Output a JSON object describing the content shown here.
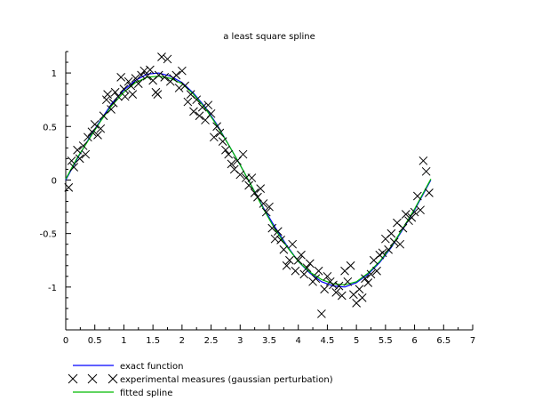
{
  "chart_data": {
    "type": "line",
    "title": "a least square spline",
    "xlabel": "",
    "ylabel": "",
    "xlim": [
      0,
      7
    ],
    "ylim": [
      -1.4,
      1.2
    ],
    "x_ticks": [
      0,
      0.5,
      1,
      1.5,
      2,
      2.5,
      3,
      3.5,
      4,
      4.5,
      5,
      5.5,
      6,
      6.5,
      7
    ],
    "x_tick_labels": [
      "0",
      "0.5",
      "1",
      "1.5",
      "2",
      "2.5",
      "3",
      "3.5",
      "4",
      "4.5",
      "5",
      "5.5",
      "6",
      "6.5",
      "7"
    ],
    "y_ticks": [
      -1,
      -0.5,
      0,
      0.5,
      1
    ],
    "y_tick_labels": [
      "-1",
      "-0.5",
      "0",
      "0.5",
      "1"
    ],
    "grid": false,
    "legend_position": "bottom-left",
    "legend": [
      {
        "label": "exact function",
        "color": "#0000ff",
        "marker": "line"
      },
      {
        "label": "experimental measures (gaussian perturbation)",
        "color": "#000000",
        "marker": "cross"
      },
      {
        "label": "fitted spline",
        "color": "#00bb00",
        "marker": "line"
      }
    ],
    "series": [
      {
        "name": "exact function",
        "type": "line",
        "color": "#0000ff",
        "x": [
          0,
          0.2,
          0.4,
          0.6,
          0.8,
          1.0,
          1.2,
          1.4,
          1.6,
          1.8,
          2.0,
          2.2,
          2.4,
          2.6,
          2.8,
          3.0,
          3.2,
          3.4,
          3.6,
          3.8,
          4.0,
          4.2,
          4.4,
          4.6,
          4.8,
          5.0,
          5.2,
          5.4,
          5.6,
          5.8,
          6.0,
          6.2,
          6.28
        ],
        "y": [
          0,
          0.2,
          0.39,
          0.56,
          0.72,
          0.84,
          0.93,
          0.99,
          1.0,
          0.97,
          0.91,
          0.81,
          0.68,
          0.52,
          0.33,
          0.14,
          -0.06,
          -0.26,
          -0.44,
          -0.61,
          -0.76,
          -0.87,
          -0.95,
          -0.99,
          -1.0,
          -0.96,
          -0.88,
          -0.77,
          -0.63,
          -0.46,
          -0.28,
          -0.08,
          0
        ]
      },
      {
        "name": "fitted spline",
        "type": "line",
        "color": "#00bb00",
        "x": [
          0,
          0.2,
          0.4,
          0.6,
          0.8,
          1.0,
          1.2,
          1.4,
          1.6,
          1.8,
          2.0,
          2.2,
          2.4,
          2.6,
          2.8,
          3.0,
          3.2,
          3.4,
          3.6,
          3.8,
          4.0,
          4.2,
          4.4,
          4.6,
          4.8,
          5.0,
          5.2,
          5.4,
          5.6,
          5.8,
          6.0,
          6.2,
          6.28
        ],
        "y": [
          0.01,
          0.21,
          0.38,
          0.55,
          0.7,
          0.82,
          0.91,
          0.96,
          0.97,
          0.95,
          0.9,
          0.8,
          0.67,
          0.51,
          0.33,
          0.14,
          -0.06,
          -0.27,
          -0.46,
          -0.62,
          -0.76,
          -0.86,
          -0.93,
          -0.97,
          -0.98,
          -0.95,
          -0.87,
          -0.76,
          -0.62,
          -0.45,
          -0.27,
          -0.07,
          0.01
        ]
      },
      {
        "name": "experimental measures (gaussian perturbation)",
        "type": "scatter",
        "color": "#000000",
        "x": [
          0.05,
          0.1,
          0.14,
          0.2,
          0.24,
          0.3,
          0.34,
          0.38,
          0.45,
          0.5,
          0.55,
          0.6,
          0.65,
          0.7,
          0.72,
          0.78,
          0.82,
          0.85,
          0.9,
          0.95,
          1.0,
          1.02,
          1.08,
          1.12,
          1.15,
          1.2,
          1.25,
          1.3,
          1.35,
          1.4,
          1.45,
          1.5,
          1.55,
          1.58,
          1.6,
          1.65,
          1.7,
          1.75,
          1.8,
          1.85,
          1.9,
          1.95,
          2.0,
          2.05,
          2.1,
          2.15,
          2.2,
          2.25,
          2.3,
          2.35,
          2.4,
          2.45,
          2.5,
          2.55,
          2.6,
          2.65,
          2.7,
          2.75,
          2.8,
          2.85,
          2.9,
          2.95,
          3.0,
          3.05,
          3.1,
          3.15,
          3.2,
          3.25,
          3.3,
          3.35,
          3.4,
          3.45,
          3.5,
          3.55,
          3.6,
          3.65,
          3.7,
          3.75,
          3.8,
          3.85,
          3.9,
          3.95,
          4.0,
          4.05,
          4.1,
          4.15,
          4.2,
          4.25,
          4.3,
          4.35,
          4.4,
          4.45,
          4.5,
          4.55,
          4.6,
          4.65,
          4.7,
          4.75,
          4.8,
          4.85,
          4.9,
          4.95,
          5.0,
          5.05,
          5.1,
          5.15,
          5.2,
          5.25,
          5.3,
          5.35,
          5.4,
          5.45,
          5.5,
          5.55,
          5.6,
          5.65,
          5.7,
          5.75,
          5.8,
          5.85,
          5.9,
          5.95,
          6.0,
          6.05,
          6.1,
          6.15,
          6.2,
          6.25
        ],
        "y": [
          -0.07,
          0.18,
          0.12,
          0.28,
          0.2,
          0.32,
          0.24,
          0.4,
          0.45,
          0.52,
          0.42,
          0.48,
          0.6,
          0.75,
          0.8,
          0.66,
          0.72,
          0.82,
          0.78,
          0.96,
          0.85,
          0.78,
          0.92,
          0.88,
          0.8,
          0.95,
          0.9,
          0.98,
          1.02,
          0.97,
          1.03,
          0.93,
          0.82,
          0.8,
          0.98,
          1.15,
          0.96,
          1.13,
          0.92,
          0.95,
          0.98,
          0.86,
          1.02,
          0.88,
          0.73,
          0.8,
          0.64,
          0.75,
          0.6,
          0.68,
          0.56,
          0.7,
          0.62,
          0.4,
          0.5,
          0.44,
          0.36,
          0.28,
          0.24,
          0.15,
          0.1,
          0.18,
          0.05,
          0.24,
          0.02,
          -0.05,
          0.02,
          -0.12,
          -0.16,
          -0.08,
          -0.22,
          -0.3,
          -0.25,
          -0.45,
          -0.55,
          -0.48,
          -0.56,
          -0.65,
          -0.8,
          -0.75,
          -0.6,
          -0.85,
          -0.75,
          -0.7,
          -0.88,
          -0.82,
          -0.78,
          -0.95,
          -0.92,
          -0.85,
          -1.25,
          -1.02,
          -0.9,
          -0.95,
          -0.98,
          -1.05,
          -0.99,
          -1.08,
          -0.85,
          -0.95,
          -0.8,
          -1.07,
          -1.15,
          -1.02,
          -1.1,
          -0.92,
          -0.96,
          -0.88,
          -0.75,
          -0.85,
          -0.7,
          -0.68,
          -0.55,
          -0.65,
          -0.5,
          -0.58,
          -0.4,
          -0.6,
          -0.45,
          -0.32,
          -0.38,
          -0.35,
          -0.3,
          -0.15,
          -0.28,
          0.18,
          0.08,
          -0.12
        ]
      }
    ]
  }
}
